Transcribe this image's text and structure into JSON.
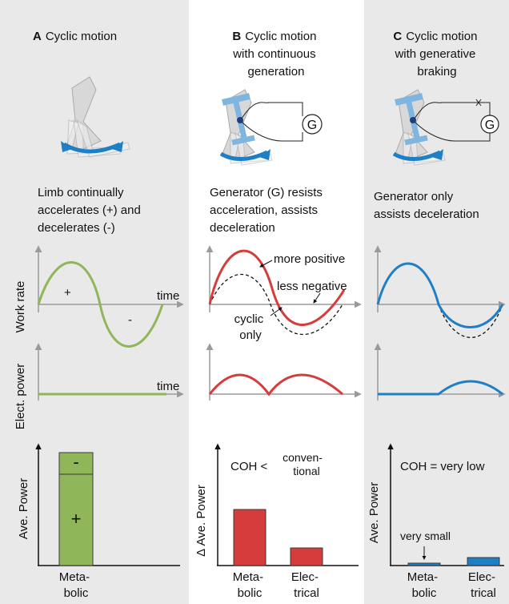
{
  "colors": {
    "panel_bg": "#e9e9e9",
    "green": "#8fb75a",
    "green_dark": "#6b8f3a",
    "red": "#d63c3c",
    "blue": "#1f7fc4",
    "blue_light": "#7fb6e0",
    "axis": "#9a9a9a"
  },
  "icons": [
    "leg-icon",
    "generator-icon",
    "arrow-icon"
  ],
  "panels": {
    "a": {
      "letter": "A",
      "title": "Cyclic motion",
      "description": [
        "Limb continually",
        "accelerates (+) and",
        "decelerates (-)"
      ],
      "plus": "+",
      "minus": "-",
      "time_label": "time",
      "time_label2": "time",
      "bar_plus": "+",
      "bar_minus": "-",
      "bar_label": [
        "Meta-",
        "bolic"
      ]
    },
    "b": {
      "letter": "B",
      "title_lines": [
        "Cyclic motion",
        "with continuous",
        "generation"
      ],
      "description": [
        "Generator (G) resists",
        "acceleration, assists",
        "deceleration"
      ],
      "generator": "G",
      "more_positive": "more positive",
      "less_negative": "less negative",
      "cyclic_only": [
        "cyclic",
        "only"
      ],
      "coh": "COH <",
      "conventional": [
        "conven-",
        "tional"
      ],
      "labels": [
        [
          "Meta-",
          "bolic"
        ],
        [
          "Elec-",
          "trical"
        ]
      ]
    },
    "c": {
      "letter": "C",
      "title_lines": [
        "Cyclic motion",
        "with generative",
        "braking"
      ],
      "description": [
        "Generator only",
        "assists deceleration"
      ],
      "generator": "G",
      "coh": "COH = very low",
      "very_small": "very small",
      "labels": [
        [
          "Meta-",
          "bolic"
        ],
        [
          "Elec-",
          "trical"
        ]
      ]
    }
  },
  "axes": {
    "work_rate": "Work rate",
    "elect_power": "Elect. power",
    "ave_power": "Ave. Power",
    "delta_ave_power": "Δ Ave. Power"
  },
  "bars": {
    "a": {
      "plus": 1.0,
      "minus": 0.22
    },
    "b": {
      "metabolic": 0.55,
      "electrical": 0.2
    },
    "c": {
      "metabolic": 0.02,
      "electrical": 0.07
    }
  }
}
